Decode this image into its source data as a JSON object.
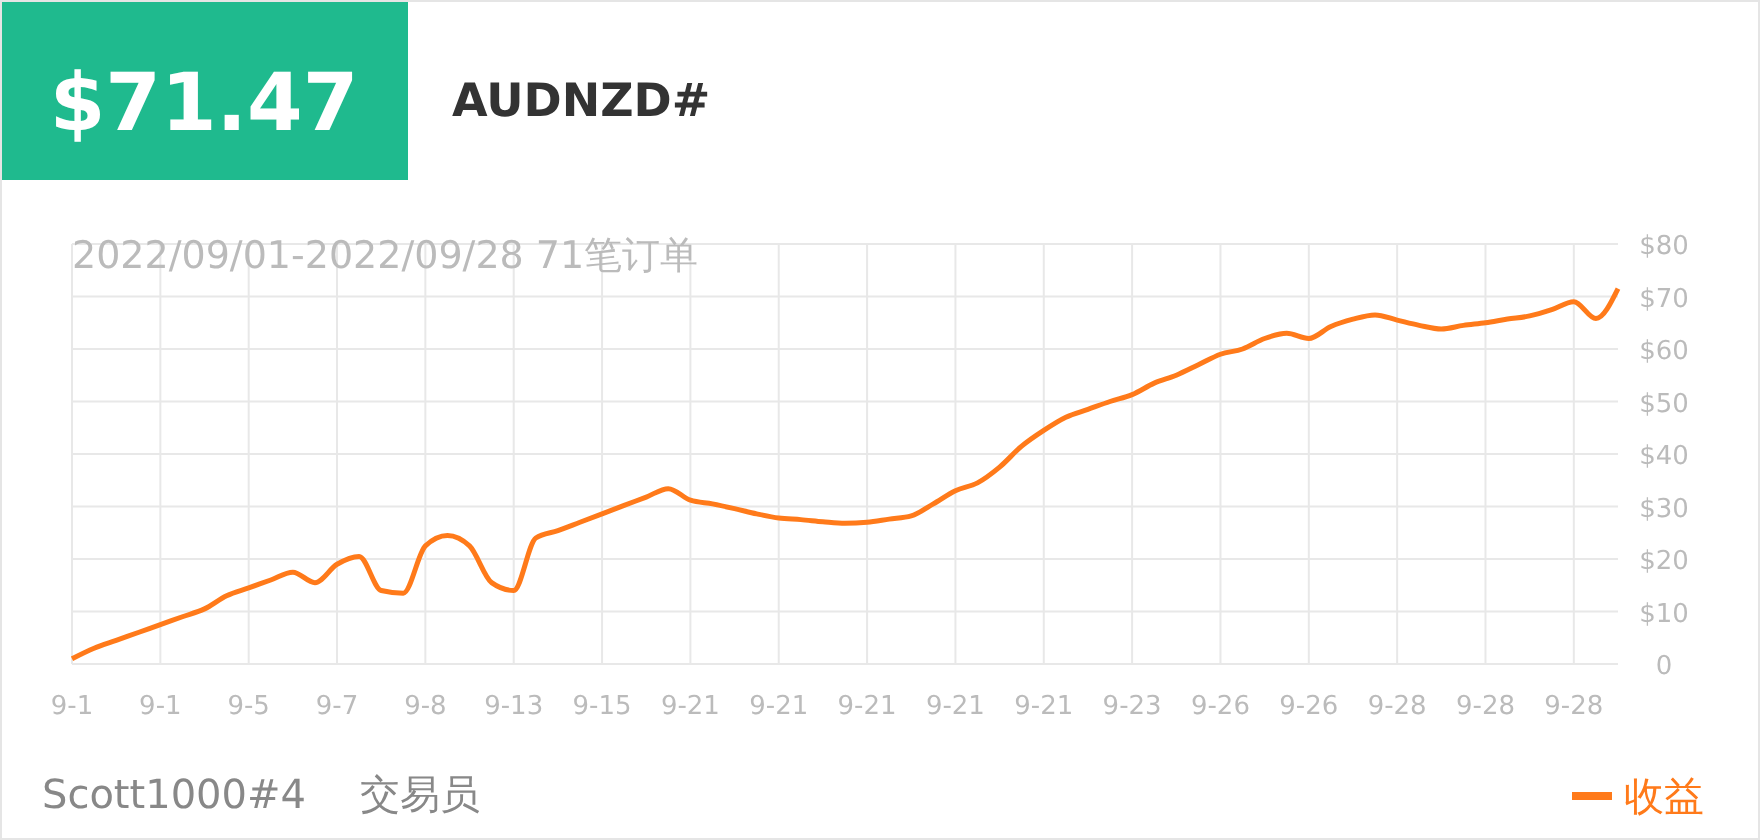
{
  "chart_data": {
    "type": "line",
    "title": "AUDNZD#",
    "subtitle": "2022/09/01-2022/09/28 71笔订单",
    "annotations": [
      "$71.47",
      "Scott1000#4",
      "交易员"
    ],
    "categories": [
      "9-1",
      null,
      null,
      null,
      "9-1",
      null,
      null,
      null,
      "9-5",
      null,
      null,
      null,
      "9-7",
      null,
      null,
      null,
      "9-8",
      null,
      null,
      null,
      "9-13",
      null,
      null,
      null,
      "9-15",
      null,
      null,
      null,
      "9-21",
      null,
      null,
      null,
      "9-21",
      null,
      null,
      null,
      "9-21",
      null,
      null,
      null,
      "9-21",
      null,
      null,
      null,
      "9-21",
      null,
      null,
      null,
      "9-23",
      null,
      null,
      null,
      "9-26",
      null,
      null,
      null,
      "9-26",
      null,
      null,
      null,
      "9-28",
      null,
      null,
      null,
      "9-28",
      null,
      null,
      null,
      "9-28",
      null,
      null
    ],
    "series": [
      {
        "name": "收益",
        "color": "#ff7a1a",
        "values": [
          1,
          3,
          4.5,
          6,
          7.5,
          9,
          10.5,
          13,
          14.5,
          16,
          17.5,
          15.5,
          19,
          20.5,
          14,
          13.5,
          22.5,
          24.5,
          22.5,
          15.5,
          14,
          24,
          25.4,
          27,
          28.6,
          30.2,
          31.8,
          33.4,
          31.2,
          30.5,
          29.6,
          28.6,
          27.8,
          27.5,
          27.1,
          26.8,
          27,
          27.6,
          28.2,
          30.5,
          33,
          34.5,
          37.5,
          41.5,
          44.5,
          47,
          48.5,
          50,
          51.3,
          53.5,
          55,
          57,
          59,
          60,
          62,
          63,
          62,
          64.3,
          65.7,
          66.5,
          65.5,
          64.5,
          63.8,
          64.5,
          65,
          65.7,
          66.3,
          67.5,
          69,
          65.8,
          71.5
        ]
      }
    ],
    "ylim": [
      0,
      80
    ],
    "yticks": [
      0,
      {
        "value": 10,
        "label": "$10"
      },
      {
        "value": 20,
        "label": "$20"
      },
      {
        "value": 30,
        "label": "$30"
      },
      {
        "value": 40,
        "label": "$40"
      },
      {
        "value": 50,
        "label": "$50"
      },
      {
        "value": 60,
        "label": "$60"
      },
      {
        "value": 70,
        "label": "$70"
      },
      {
        "value": 80,
        "label": "$80"
      }
    ],
    "grid": true,
    "legend": "bottom right",
    "marker": "none",
    "line_style": "solid"
  }
}
